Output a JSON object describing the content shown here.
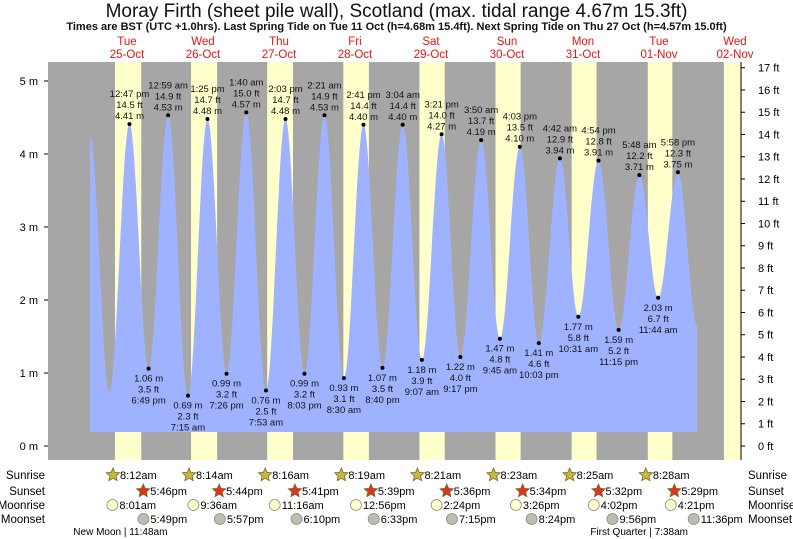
{
  "chart_data": {
    "type": "area",
    "title": "Moray Firth (sheet pile wall), Scotland (max. tidal range 4.67m 15.3ft)",
    "subtitle": "Times are BST (UTC +1.0hrs). Last Spring Tide on Tue 11 Oct (h=4.68m 15.4ft). Next Spring Tide on Thu 27 Oct (h=4.57m 15.0ft)",
    "ylabel_left": "m",
    "ylabel_right": "ft",
    "ylim_m": [
      -0.25,
      5.2
    ],
    "left_ticks": [
      "0 m",
      "1 m",
      "2 m",
      "3 m",
      "4 m",
      "5 m"
    ],
    "right_ticks": [
      "0 ft",
      "1 ft",
      "2 ft",
      "3 ft",
      "4 ft",
      "5 ft",
      "6 ft",
      "7 ft",
      "8 ft",
      "9 ft",
      "10 ft",
      "11 ft",
      "12 ft",
      "13 ft",
      "14 ft",
      "15 ft",
      "16 ft",
      "17 ft"
    ],
    "days": [
      {
        "dow": "Tue",
        "date": "25-Oct"
      },
      {
        "dow": "Wed",
        "date": "26-Oct"
      },
      {
        "dow": "Thu",
        "date": "27-Oct"
      },
      {
        "dow": "Fri",
        "date": "28-Oct"
      },
      {
        "dow": "Sat",
        "date": "29-Oct"
      },
      {
        "dow": "Sun",
        "date": "30-Oct"
      },
      {
        "dow": "Mon",
        "date": "31-Oct"
      },
      {
        "dow": "Tue",
        "date": "01-Nov"
      },
      {
        "dow": "Wed",
        "date": "02-Nov"
      }
    ],
    "tides": [
      {
        "day": 0,
        "hour": 0.3,
        "m": 4.25,
        "labeled": false
      },
      {
        "day": 0,
        "hour": 6.4,
        "m": 0.74,
        "labeled": false
      },
      {
        "day": 0,
        "hour": 12.78,
        "m": 4.41,
        "type": "high",
        "time": "12:47 pm",
        "ft": "14.5 ft",
        "mlabel": "4.41 m",
        "labeled": true
      },
      {
        "day": 0,
        "hour": 18.82,
        "m": 1.06,
        "type": "low",
        "time": "6:49 pm",
        "ft": "3.5 ft",
        "mlabel": "1.06 m",
        "labeled": true
      },
      {
        "day": 1,
        "hour": 0.98,
        "m": 4.53,
        "type": "high",
        "time": "12:59 am",
        "ft": "14.9 ft",
        "mlabel": "4.53 m",
        "labeled": true
      },
      {
        "day": 1,
        "hour": 7.25,
        "m": 0.69,
        "type": "low",
        "time": "7:15 am",
        "ft": "2.3 ft",
        "mlabel": "0.69 m",
        "labeled": true
      },
      {
        "day": 1,
        "hour": 13.42,
        "m": 4.48,
        "type": "high",
        "time": "1:25 pm",
        "ft": "14.7 ft",
        "mlabel": "4.48 m",
        "labeled": true
      },
      {
        "day": 1,
        "hour": 19.43,
        "m": 0.99,
        "type": "low",
        "time": "7:26 pm",
        "ft": "3.2 ft",
        "mlabel": "0.99 m",
        "labeled": true
      },
      {
        "day": 2,
        "hour": 1.67,
        "m": 4.57,
        "type": "high",
        "time": "1:40 am",
        "ft": "15.0 ft",
        "mlabel": "4.57 m",
        "labeled": true
      },
      {
        "day": 2,
        "hour": 7.88,
        "m": 0.76,
        "type": "low",
        "time": "7:53 am",
        "ft": "2.5 ft",
        "mlabel": "0.76 m",
        "labeled": true
      },
      {
        "day": 2,
        "hour": 14.05,
        "m": 4.48,
        "type": "high",
        "time": "2:03 pm",
        "ft": "14.7 ft",
        "mlabel": "4.48 m",
        "labeled": true
      },
      {
        "day": 2,
        "hour": 20.05,
        "m": 0.99,
        "type": "low",
        "time": "8:03 pm",
        "ft": "3.2 ft",
        "mlabel": "0.99 m",
        "labeled": true
      },
      {
        "day": 3,
        "hour": 2.35,
        "m": 4.53,
        "type": "high",
        "time": "2:21 am",
        "ft": "14.9 ft",
        "mlabel": "4.53 m",
        "labeled": true
      },
      {
        "day": 3,
        "hour": 8.5,
        "m": 0.93,
        "type": "low",
        "time": "8:30 am",
        "ft": "3.1 ft",
        "mlabel": "0.93 m",
        "labeled": true
      },
      {
        "day": 3,
        "hour": 14.68,
        "m": 4.4,
        "type": "high",
        "time": "2:41 pm",
        "ft": "14.4 ft",
        "mlabel": "4.40 m",
        "labeled": true
      },
      {
        "day": 3,
        "hour": 20.67,
        "m": 1.07,
        "type": "low",
        "time": "8:40 pm",
        "ft": "3.5 ft",
        "mlabel": "1.07 m",
        "labeled": true
      },
      {
        "day": 4,
        "hour": 3.07,
        "m": 4.4,
        "type": "high",
        "time": "3:04 am",
        "ft": "14.4 ft",
        "mlabel": "4.40 m",
        "labeled": true
      },
      {
        "day": 4,
        "hour": 9.12,
        "m": 1.18,
        "type": "low",
        "time": "9:07 am",
        "ft": "3.9 ft",
        "mlabel": "1.18 m",
        "labeled": true
      },
      {
        "day": 4,
        "hour": 15.35,
        "m": 4.27,
        "type": "high",
        "time": "3:21 pm",
        "ft": "14.0 ft",
        "mlabel": "4.27 m",
        "labeled": true
      },
      {
        "day": 4,
        "hour": 21.28,
        "m": 1.22,
        "type": "low",
        "time": "9:17 pm",
        "ft": "4.0 ft",
        "mlabel": "1.22 m",
        "labeled": true
      },
      {
        "day": 5,
        "hour": 3.83,
        "m": 4.19,
        "type": "high",
        "time": "3:50 am",
        "ft": "13.7 ft",
        "mlabel": "4.19 m",
        "labeled": true
      },
      {
        "day": 5,
        "hour": 9.75,
        "m": 1.47,
        "type": "low",
        "time": "9:45 am",
        "ft": "4.8 ft",
        "mlabel": "1.47 m",
        "labeled": true
      },
      {
        "day": 5,
        "hour": 16.05,
        "m": 4.1,
        "type": "high",
        "time": "4:03 pm",
        "ft": "13.5 ft",
        "mlabel": "4.10 m",
        "labeled": true
      },
      {
        "day": 5,
        "hour": 22.05,
        "m": 1.41,
        "type": "low",
        "time": "10:03 pm",
        "ft": "4.6 ft",
        "mlabel": "1.41 m",
        "labeled": true
      },
      {
        "day": 6,
        "hour": 4.7,
        "m": 3.94,
        "type": "high",
        "time": "4:42 am",
        "ft": "12.9 ft",
        "mlabel": "3.94 m",
        "labeled": true
      },
      {
        "day": 6,
        "hour": 10.52,
        "m": 1.77,
        "type": "low",
        "time": "10:31 am",
        "ft": "5.8 ft",
        "mlabel": "1.77 m",
        "labeled": true
      },
      {
        "day": 6,
        "hour": 16.9,
        "m": 3.91,
        "type": "high",
        "time": "4:54 pm",
        "ft": "12.8 ft",
        "mlabel": "3.91 m",
        "labeled": true
      },
      {
        "day": 6,
        "hour": 23.25,
        "m": 1.59,
        "type": "low",
        "time": "11:15 pm",
        "ft": "5.2 ft",
        "mlabel": "1.59 m",
        "labeled": true
      },
      {
        "day": 7,
        "hour": 5.8,
        "m": 3.71,
        "type": "high",
        "time": "5:48 am",
        "ft": "12.2 ft",
        "mlabel": "3.71 m",
        "labeled": true
      },
      {
        "day": 7,
        "hour": 11.73,
        "m": 2.03,
        "type": "low",
        "time": "11:44 am",
        "ft": "6.7 ft",
        "mlabel": "2.03 m",
        "labeled": true
      },
      {
        "day": 7,
        "hour": 17.97,
        "m": 3.75,
        "type": "high",
        "time": "5:58 pm",
        "ft": "12.3 ft",
        "mlabel": "3.75 m",
        "labeled": true
      },
      {
        "day": 8,
        "hour": 0.0,
        "m": 1.65,
        "labeled": false
      }
    ],
    "sun_moon": {
      "row_labels": [
        "Sunrise",
        "Sunset",
        "Moonrise",
        "Moonset"
      ],
      "sunrise": [
        {
          "day": 0,
          "hour": 8.2,
          "time": "8:12am"
        },
        {
          "day": 1,
          "hour": 8.23,
          "time": "8:14am"
        },
        {
          "day": 2,
          "hour": 8.27,
          "time": "8:16am"
        },
        {
          "day": 3,
          "hour": 8.32,
          "time": "8:19am"
        },
        {
          "day": 4,
          "hour": 8.35,
          "time": "8:21am"
        },
        {
          "day": 5,
          "hour": 8.38,
          "time": "8:23am"
        },
        {
          "day": 6,
          "hour": 8.42,
          "time": "8:25am"
        },
        {
          "day": 7,
          "hour": 8.47,
          "time": "8:28am"
        }
      ],
      "sunset": [
        {
          "day": 0,
          "hour": 17.77,
          "time": "5:46pm"
        },
        {
          "day": 1,
          "hour": 17.73,
          "time": "5:44pm"
        },
        {
          "day": 2,
          "hour": 17.68,
          "time": "5:41pm"
        },
        {
          "day": 3,
          "hour": 17.65,
          "time": "5:39pm"
        },
        {
          "day": 4,
          "hour": 17.6,
          "time": "5:36pm"
        },
        {
          "day": 5,
          "hour": 17.57,
          "time": "5:34pm"
        },
        {
          "day": 6,
          "hour": 17.53,
          "time": "5:32pm"
        },
        {
          "day": 7,
          "hour": 17.48,
          "time": "5:29pm"
        }
      ],
      "moonrise": [
        {
          "day": 0,
          "hour": 8.02,
          "time": "8:01am"
        },
        {
          "day": 1,
          "hour": 9.6,
          "time": "9:36am"
        },
        {
          "day": 2,
          "hour": 11.27,
          "time": "11:16am"
        },
        {
          "day": 3,
          "hour": 12.93,
          "time": "12:56pm"
        },
        {
          "day": 4,
          "hour": 14.4,
          "time": "2:24pm"
        },
        {
          "day": 5,
          "hour": 15.43,
          "time": "3:26pm"
        },
        {
          "day": 6,
          "hour": 16.03,
          "time": "4:02pm"
        },
        {
          "day": 7,
          "hour": 16.35,
          "time": "4:21pm"
        }
      ],
      "moonset": [
        {
          "day": 0,
          "hour": 17.82,
          "time": "5:49pm"
        },
        {
          "day": 1,
          "hour": 17.95,
          "time": "5:57pm"
        },
        {
          "day": 2,
          "hour": 18.17,
          "time": "6:10pm"
        },
        {
          "day": 3,
          "hour": 18.55,
          "time": "6:33pm"
        },
        {
          "day": 4,
          "hour": 19.25,
          "time": "7:15pm"
        },
        {
          "day": 5,
          "hour": 20.4,
          "time": "8:24pm"
        },
        {
          "day": 6,
          "hour": 21.93,
          "time": "9:56pm"
        },
        {
          "day": 7,
          "hour": 23.6,
          "time": "11:36pm"
        }
      ],
      "phases": [
        {
          "day": 0,
          "hour": 11.8,
          "text": "New Moon | 11:48am"
        },
        {
          "day": 7,
          "hour": 7.63,
          "text": "First Quarter | 7:38am"
        }
      ]
    },
    "colors": {
      "night": "#a6a6a6",
      "day": "#ffffcc",
      "water": "#9fb2ff",
      "daylabel": "#ee1111",
      "sunrise": "#c8b840",
      "sunset": "#dd3322",
      "moonrise": "#ffffcc",
      "moonset": "#c0bdb0"
    }
  }
}
